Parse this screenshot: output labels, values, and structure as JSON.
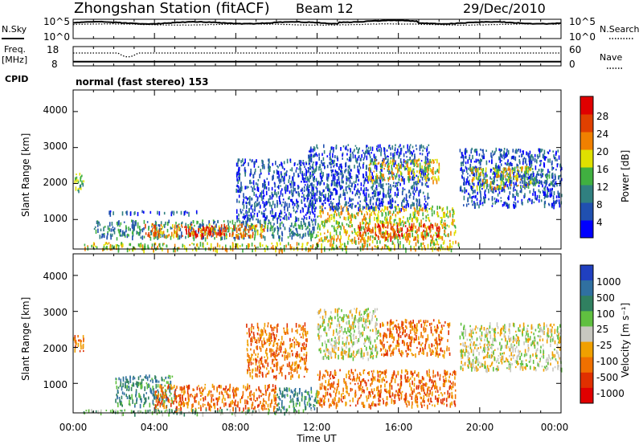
{
  "header": {
    "station": "Zhongshan Station (fitACF)",
    "beam": "Beam 12",
    "date": "29/Dec/2010"
  },
  "nsky_panel": {
    "left_label": "N.Sky",
    "right_label": "N.Search",
    "left_ticks": [
      "10^5",
      "10^0"
    ],
    "right_ticks": [
      "10^5",
      "10^0"
    ],
    "ylim_log10": [
      0,
      5
    ]
  },
  "freq_panel": {
    "left_label_1": "Freq.",
    "left_label_2": "[MHz]",
    "right_label": "Nave",
    "left_ticks": [
      "18",
      "8"
    ],
    "right_ticks": [
      "60",
      "0"
    ],
    "freq_lim": [
      8,
      18
    ],
    "nave_lim": [
      0,
      60
    ]
  },
  "cpid": {
    "label": "CPID",
    "mode_text": "normal (fast stereo) 153"
  },
  "x_axis": {
    "label": "Time UT",
    "ticks": [
      "00:00",
      "04:00",
      "08:00",
      "12:00",
      "16:00",
      "20:00",
      "00:00"
    ],
    "range_hours": [
      0,
      24
    ]
  },
  "power_panel": {
    "ylabel": "Slant Range [km]",
    "yticks": [
      "1000",
      "2000",
      "3000",
      "4000"
    ],
    "ylim": [
      180,
      4600
    ],
    "colorbar_label": "Power [dB]",
    "colorbar_ticks": [
      "4",
      "8",
      "12",
      "16",
      "20",
      "24",
      "28"
    ],
    "colorbar_range": [
      0,
      32
    ],
    "colors": [
      "#0000ff",
      "#2050b0",
      "#308080",
      "#40b040",
      "#e0e000",
      "#f08000",
      "#e04000",
      "#e00000"
    ]
  },
  "velocity_panel": {
    "ylabel": "Slant Range [km]",
    "yticks": [
      "1000",
      "2000",
      "3000",
      "4000"
    ],
    "ylim": [
      180,
      4600
    ],
    "colorbar_label": "Velocity [m s⁻¹]",
    "colorbar_ticks": [
      "1000",
      "500",
      "100",
      "25",
      "-25",
      "-100",
      "-500",
      "-1000"
    ],
    "colors": [
      "#2040c0",
      "#3070a0",
      "#308060",
      "#60c040",
      "#c8c8c0",
      "#f0a000",
      "#f07000",
      "#e03000",
      "#e00000"
    ]
  },
  "chart_data": {
    "type": "heatmap",
    "x_label": "Time UT",
    "y_label": "Slant Range [km]",
    "x_range_hours": [
      0,
      24
    ],
    "y_range_km": [
      180,
      4600
    ],
    "power_regions": [
      {
        "t0": 0.0,
        "t1": 0.5,
        "r0": 1800,
        "r1": 2350,
        "level": 3
      },
      {
        "t0": 1.2,
        "t1": 7.5,
        "r0": 1200,
        "r1": 1260,
        "level": 1
      },
      {
        "t0": 1.0,
        "t1": 12.0,
        "r0": 500,
        "r1": 1000,
        "level": 2
      },
      {
        "t0": 3.5,
        "t1": 9.5,
        "r0": 550,
        "r1": 900,
        "level": 5
      },
      {
        "t0": 5.5,
        "t1": 7.5,
        "r0": 600,
        "r1": 850,
        "level": 7
      },
      {
        "t0": 0.5,
        "t1": 19.0,
        "r0": 180,
        "r1": 380,
        "level": 4
      },
      {
        "t0": 8.0,
        "t1": 12.0,
        "r0": 1000,
        "r1": 2700,
        "level": 1
      },
      {
        "t0": 12.0,
        "t1": 18.8,
        "r0": 400,
        "r1": 1400,
        "level": 4
      },
      {
        "t0": 14.0,
        "t1": 18.0,
        "r0": 500,
        "r1": 900,
        "level": 6
      },
      {
        "t0": 11.5,
        "t1": 17.5,
        "r0": 1300,
        "r1": 3100,
        "level": 1
      },
      {
        "t0": 14.5,
        "t1": 18.0,
        "r0": 2100,
        "r1": 2700,
        "level": 4
      },
      {
        "t0": 19.0,
        "t1": 24.0,
        "r0": 1400,
        "r1": 3000,
        "level": 1
      },
      {
        "t0": 19.5,
        "t1": 22.5,
        "r0": 1900,
        "r1": 2500,
        "level": 4
      },
      {
        "t0": 22.0,
        "t1": 24.0,
        "r0": 2000,
        "r1": 2300,
        "level": 2
      }
    ],
    "velocity_regions": [
      {
        "t0": 0.0,
        "t1": 0.5,
        "r0": 1800,
        "r1": 2350,
        "level": 6
      },
      {
        "t0": 2.0,
        "t1": 5.0,
        "r0": 400,
        "r1": 1250,
        "level": 2
      },
      {
        "t0": 4.0,
        "t1": 10.0,
        "r0": 300,
        "r1": 1000,
        "level": 6
      },
      {
        "t0": 10.0,
        "t1": 12.0,
        "r0": 300,
        "r1": 900,
        "level": 2
      },
      {
        "t0": 8.5,
        "t1": 11.5,
        "r0": 1200,
        "r1": 2700,
        "level": 6
      },
      {
        "t0": 12.0,
        "t1": 15.0,
        "r0": 1700,
        "r1": 3100,
        "level": 4
      },
      {
        "t0": 12.0,
        "t1": 18.8,
        "r0": 400,
        "r1": 1400,
        "level": 6
      },
      {
        "t0": 15.0,
        "t1": 18.5,
        "r0": 1800,
        "r1": 2800,
        "level": 6
      },
      {
        "t0": 19.0,
        "t1": 24.0,
        "r0": 1400,
        "r1": 2700,
        "level": 4
      },
      {
        "t0": 0.5,
        "t1": 12.0,
        "r0": 180,
        "r1": 300,
        "level": 3
      }
    ]
  }
}
